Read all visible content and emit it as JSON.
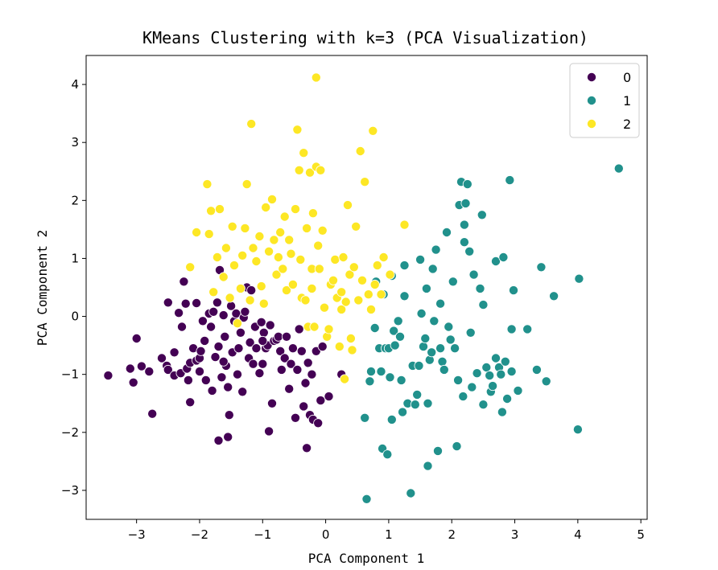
{
  "chart_data": {
    "type": "scatter",
    "title": "KMeans Clustering with k=3 (PCA Visualization)",
    "xlabel": "PCA Component 1",
    "ylabel": "PCA Component 2",
    "xlim": [
      -3.8,
      5.1
    ],
    "ylim": [
      -3.5,
      4.5
    ],
    "xticks": [
      -3,
      -2,
      -1,
      0,
      1,
      2,
      3,
      4,
      5
    ],
    "yticks": [
      -3,
      -2,
      -1,
      0,
      1,
      2,
      3,
      4
    ],
    "grid": false,
    "legend_position": "top-right",
    "legend": [
      {
        "label": "0",
        "color": "#440154"
      },
      {
        "label": "1",
        "color": "#21918c"
      },
      {
        "label": "2",
        "color": "#fde725"
      }
    ],
    "series": [
      {
        "name": "0",
        "color": "#440154",
        "points": [
          [
            -3.45,
            -1.02
          ],
          [
            -3.1,
            -0.9
          ],
          [
            -3.05,
            -1.14
          ],
          [
            -3.0,
            -0.38
          ],
          [
            -2.92,
            -0.86
          ],
          [
            -2.8,
            -0.95
          ],
          [
            -2.75,
            -1.68
          ],
          [
            -2.6,
            -0.72
          ],
          [
            -2.52,
            -0.85
          ],
          [
            -2.5,
            -0.92
          ],
          [
            -2.5,
            0.24
          ],
          [
            -2.4,
            -1.02
          ],
          [
            -2.4,
            -0.62
          ],
          [
            -2.33,
            0.06
          ],
          [
            -2.3,
            -0.98
          ],
          [
            -2.25,
            0.6
          ],
          [
            -2.22,
            0.22
          ],
          [
            -2.2,
            -0.9
          ],
          [
            -2.18,
            -1.1
          ],
          [
            -2.15,
            -0.8
          ],
          [
            -2.15,
            -1.48
          ],
          [
            -2.1,
            -0.55
          ],
          [
            -2.05,
            -0.76
          ],
          [
            -2.05,
            0.23
          ],
          [
            -2.0,
            -0.95
          ],
          [
            -2.0,
            -0.72
          ],
          [
            -1.98,
            -0.6
          ],
          [
            -1.92,
            -0.42
          ],
          [
            -1.9,
            -1.1
          ],
          [
            -1.85,
            0.05
          ],
          [
            -1.82,
            -0.18
          ],
          [
            -1.8,
            -1.28
          ],
          [
            -1.78,
            0.08
          ],
          [
            -1.75,
            -0.7
          ],
          [
            -1.72,
            0.24
          ],
          [
            -1.7,
            -0.52
          ],
          [
            -1.7,
            -2.14
          ],
          [
            -1.68,
            0.8
          ],
          [
            -1.65,
            -1.05
          ],
          [
            -1.62,
            0.02
          ],
          [
            -1.6,
            -0.35
          ],
          [
            -1.58,
            -0.85
          ],
          [
            -1.55,
            -1.22
          ],
          [
            -1.55,
            -2.08
          ],
          [
            -1.53,
            -1.7
          ],
          [
            -1.5,
            0.18
          ],
          [
            -1.48,
            -0.62
          ],
          [
            -1.45,
            -0.08
          ],
          [
            -1.42,
            0.05
          ],
          [
            -1.4,
            -1.0
          ],
          [
            -1.38,
            -0.55
          ],
          [
            -1.35,
            -0.28
          ],
          [
            -1.32,
            -1.3
          ],
          [
            -1.3,
            -0.02
          ],
          [
            -1.25,
            0.5
          ],
          [
            -1.22,
            -0.72
          ],
          [
            -1.2,
            -0.45
          ],
          [
            -1.18,
            0.45
          ],
          [
            -1.15,
            -0.82
          ],
          [
            -1.12,
            -0.18
          ],
          [
            -1.1,
            -0.55
          ],
          [
            -1.05,
            -0.98
          ],
          [
            -1.02,
            -0.1
          ],
          [
            -0.98,
            -0.28
          ],
          [
            -0.95,
            -0.55
          ],
          [
            -0.92,
            -0.5
          ],
          [
            -0.9,
            -1.98
          ],
          [
            -0.88,
            -0.15
          ],
          [
            -0.85,
            -1.5
          ],
          [
            -0.82,
            -0.42
          ],
          [
            -0.78,
            -0.4
          ],
          [
            -0.75,
            -0.35
          ],
          [
            -0.72,
            -0.6
          ],
          [
            -0.7,
            -0.92
          ],
          [
            -0.65,
            -0.72
          ],
          [
            -0.62,
            -0.35
          ],
          [
            -0.58,
            -1.25
          ],
          [
            -0.55,
            -0.82
          ],
          [
            -0.52,
            -0.55
          ],
          [
            -0.48,
            -1.75
          ],
          [
            -0.45,
            -0.92
          ],
          [
            -0.42,
            -0.22
          ],
          [
            -0.38,
            -0.6
          ],
          [
            -0.35,
            -1.55
          ],
          [
            -0.32,
            -1.15
          ],
          [
            -0.3,
            -2.27
          ],
          [
            -0.28,
            -0.8
          ],
          [
            -0.25,
            -1.7
          ],
          [
            -0.22,
            -1.0
          ],
          [
            -0.2,
            -1.78
          ],
          [
            -0.15,
            -0.6
          ],
          [
            -0.12,
            -1.84
          ],
          [
            -0.08,
            -1.45
          ],
          [
            -0.05,
            -0.52
          ],
          [
            0.05,
            -1.38
          ],
          [
            0.25,
            -1.0
          ],
          [
            -1.0,
            -0.42
          ],
          [
            -1.28,
            0.08
          ],
          [
            -1.95,
            -0.08
          ],
          [
            -2.28,
            -0.18
          ],
          [
            -1.62,
            -0.78
          ],
          [
            -1.0,
            -0.82
          ]
        ]
      },
      {
        "name": "1",
        "color": "#21918c",
        "points": [
          [
            0.62,
            -1.75
          ],
          [
            0.65,
            -3.15
          ],
          [
            0.7,
            -1.12
          ],
          [
            0.72,
            -0.95
          ],
          [
            0.78,
            -0.2
          ],
          [
            0.8,
            0.6
          ],
          [
            0.85,
            -0.55
          ],
          [
            0.88,
            -0.95
          ],
          [
            0.9,
            -2.28
          ],
          [
            0.92,
            0.38
          ],
          [
            0.95,
            -0.55
          ],
          [
            0.98,
            -2.38
          ],
          [
            1.0,
            -0.55
          ],
          [
            1.02,
            -1.05
          ],
          [
            1.05,
            -1.78
          ],
          [
            1.05,
            0.7
          ],
          [
            1.08,
            -0.25
          ],
          [
            1.1,
            -0.5
          ],
          [
            1.15,
            -0.08
          ],
          [
            1.18,
            -0.35
          ],
          [
            1.2,
            -1.1
          ],
          [
            1.22,
            -1.65
          ],
          [
            1.25,
            0.88
          ],
          [
            1.3,
            -1.5
          ],
          [
            1.35,
            -3.05
          ],
          [
            1.38,
            -0.85
          ],
          [
            1.42,
            -1.52
          ],
          [
            1.45,
            -1.35
          ],
          [
            1.48,
            -0.85
          ],
          [
            1.5,
            0.98
          ],
          [
            1.52,
            0.05
          ],
          [
            1.55,
            -0.52
          ],
          [
            1.58,
            -0.38
          ],
          [
            1.6,
            0.48
          ],
          [
            1.62,
            -1.5
          ],
          [
            1.62,
            -2.58
          ],
          [
            1.65,
            -0.75
          ],
          [
            1.68,
            -0.62
          ],
          [
            1.7,
            0.82
          ],
          [
            1.72,
            -0.08
          ],
          [
            1.75,
            1.15
          ],
          [
            1.78,
            -2.32
          ],
          [
            1.82,
            -0.55
          ],
          [
            1.85,
            -0.78
          ],
          [
            1.88,
            -0.92
          ],
          [
            1.92,
            1.45
          ],
          [
            1.98,
            -0.4
          ],
          [
            2.02,
            0.6
          ],
          [
            2.05,
            -0.55
          ],
          [
            2.08,
            -2.24
          ],
          [
            2.1,
            -1.1
          ],
          [
            2.12,
            1.92
          ],
          [
            2.15,
            2.32
          ],
          [
            2.18,
            -1.38
          ],
          [
            2.2,
            1.28
          ],
          [
            2.2,
            1.58
          ],
          [
            2.22,
            1.95
          ],
          [
            2.25,
            2.28
          ],
          [
            2.28,
            1.12
          ],
          [
            2.3,
            -0.28
          ],
          [
            2.32,
            -1.22
          ],
          [
            2.35,
            0.72
          ],
          [
            2.4,
            -0.98
          ],
          [
            2.45,
            0.48
          ],
          [
            2.48,
            1.75
          ],
          [
            2.5,
            -1.52
          ],
          [
            2.55,
            -0.88
          ],
          [
            2.6,
            -1.02
          ],
          [
            2.62,
            -1.3
          ],
          [
            2.65,
            -1.2
          ],
          [
            2.7,
            0.95
          ],
          [
            2.75,
            -0.88
          ],
          [
            2.78,
            -1.0
          ],
          [
            2.8,
            -1.65
          ],
          [
            2.82,
            1.02
          ],
          [
            2.85,
            -0.78
          ],
          [
            2.88,
            -1.42
          ],
          [
            2.92,
            2.35
          ],
          [
            2.95,
            -0.95
          ],
          [
            2.98,
            0.45
          ],
          [
            3.05,
            -1.28
          ],
          [
            3.2,
            -0.22
          ],
          [
            3.35,
            -0.92
          ],
          [
            3.42,
            0.85
          ],
          [
            3.5,
            -1.12
          ],
          [
            3.62,
            0.35
          ],
          [
            4.0,
            -1.95
          ],
          [
            4.02,
            0.65
          ],
          [
            4.65,
            2.55
          ],
          [
            1.82,
            0.22
          ],
          [
            2.5,
            0.2
          ],
          [
            1.95,
            -0.18
          ],
          [
            2.95,
            -0.22
          ],
          [
            1.25,
            0.35
          ],
          [
            2.7,
            -0.72
          ]
        ]
      },
      {
        "name": "2",
        "color": "#fde725",
        "points": [
          [
            -2.15,
            0.85
          ],
          [
            -2.05,
            1.45
          ],
          [
            -1.88,
            2.28
          ],
          [
            -1.85,
            1.42
          ],
          [
            -1.82,
            1.82
          ],
          [
            -1.78,
            0.42
          ],
          [
            -1.72,
            1.02
          ],
          [
            -1.68,
            1.85
          ],
          [
            -1.62,
            0.68
          ],
          [
            -1.58,
            1.18
          ],
          [
            -1.52,
            0.32
          ],
          [
            -1.48,
            1.55
          ],
          [
            -1.45,
            0.88
          ],
          [
            -1.4,
            -0.12
          ],
          [
            -1.35,
            0.48
          ],
          [
            -1.32,
            1.05
          ],
          [
            -1.28,
            1.52
          ],
          [
            -1.25,
            2.28
          ],
          [
            -1.2,
            0.28
          ],
          [
            -1.18,
            3.32
          ],
          [
            -1.15,
            1.18
          ],
          [
            -1.1,
            0.95
          ],
          [
            -1.05,
            1.38
          ],
          [
            -1.02,
            0.52
          ],
          [
            -0.98,
            0.22
          ],
          [
            -0.95,
            1.88
          ],
          [
            -0.9,
            1.12
          ],
          [
            -0.85,
            2.02
          ],
          [
            -0.82,
            1.32
          ],
          [
            -0.78,
            0.72
          ],
          [
            -0.75,
            1.02
          ],
          [
            -0.72,
            1.45
          ],
          [
            -0.68,
            0.82
          ],
          [
            -0.65,
            1.72
          ],
          [
            -0.62,
            0.45
          ],
          [
            -0.58,
            1.32
          ],
          [
            -0.55,
            1.08
          ],
          [
            -0.52,
            0.55
          ],
          [
            -0.48,
            1.85
          ],
          [
            -0.45,
            3.22
          ],
          [
            -0.42,
            2.52
          ],
          [
            -0.4,
            0.98
          ],
          [
            -0.38,
            0.32
          ],
          [
            -0.35,
            2.82
          ],
          [
            -0.32,
            0.28
          ],
          [
            -0.3,
            1.52
          ],
          [
            -0.28,
            -0.18
          ],
          [
            -0.25,
            2.48
          ],
          [
            -0.22,
            0.82
          ],
          [
            -0.2,
            1.78
          ],
          [
            -0.18,
            -0.18
          ],
          [
            -0.15,
            2.58
          ],
          [
            -0.12,
            1.22
          ],
          [
            -0.1,
            0.82
          ],
          [
            -0.08,
            2.52
          ],
          [
            -0.05,
            1.48
          ],
          [
            -0.02,
            0.15
          ],
          [
            0.02,
            -0.35
          ],
          [
            0.05,
            -0.22
          ],
          [
            0.08,
            0.55
          ],
          [
            0.12,
            0.62
          ],
          [
            0.15,
            0.98
          ],
          [
            0.18,
            0.32
          ],
          [
            0.22,
            -0.52
          ],
          [
            0.25,
            0.12
          ],
          [
            0.28,
            1.02
          ],
          [
            0.3,
            -1.08
          ],
          [
            0.32,
            0.25
          ],
          [
            0.35,
            1.92
          ],
          [
            0.38,
            0.72
          ],
          [
            0.4,
            -0.38
          ],
          [
            0.42,
            -0.58
          ],
          [
            0.45,
            0.85
          ],
          [
            0.48,
            1.55
          ],
          [
            0.52,
            0.28
          ],
          [
            0.55,
            2.85
          ],
          [
            0.58,
            0.62
          ],
          [
            0.62,
            2.32
          ],
          [
            0.68,
            0.38
          ],
          [
            0.72,
            0.12
          ],
          [
            0.75,
            3.2
          ],
          [
            0.78,
            0.55
          ],
          [
            0.82,
            0.88
          ],
          [
            0.88,
            0.38
          ],
          [
            0.92,
            1.02
          ],
          [
            1.02,
            0.72
          ],
          [
            1.25,
            1.58
          ],
          [
            -0.15,
            4.12
          ],
          [
            -0.22,
            0.48
          ],
          [
            0.25,
            0.42
          ]
        ]
      }
    ]
  }
}
